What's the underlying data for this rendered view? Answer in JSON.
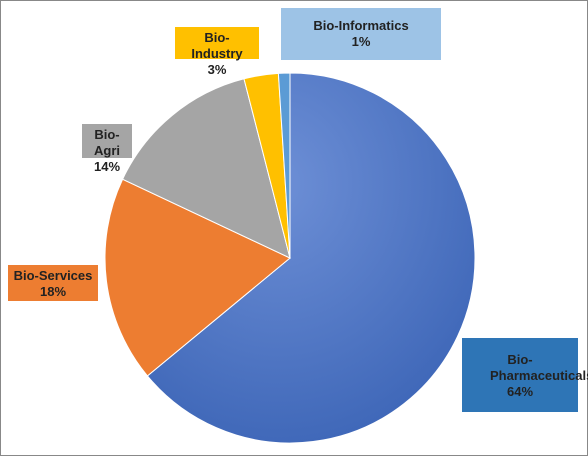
{
  "chart_data": {
    "type": "pie",
    "categories": [
      "Bio-Pharmaceuticals",
      "Bio-Services",
      "Bio-Agri",
      "Bio-Industry",
      "Bio-Informatics"
    ],
    "values": [
      64,
      18,
      14,
      3,
      1
    ],
    "value_labels": [
      "64%",
      "18%",
      "14%",
      "3%",
      "1%"
    ],
    "colors": [
      "#4a72c0",
      "#ed7d31",
      "#a5a5a5",
      "#ffc000",
      "#5b9bd5"
    ],
    "label_colors": [
      "#2e75b6",
      "#ed7d31",
      "#a5a5a5",
      "#ffc000",
      "#9dc3e6"
    ]
  }
}
